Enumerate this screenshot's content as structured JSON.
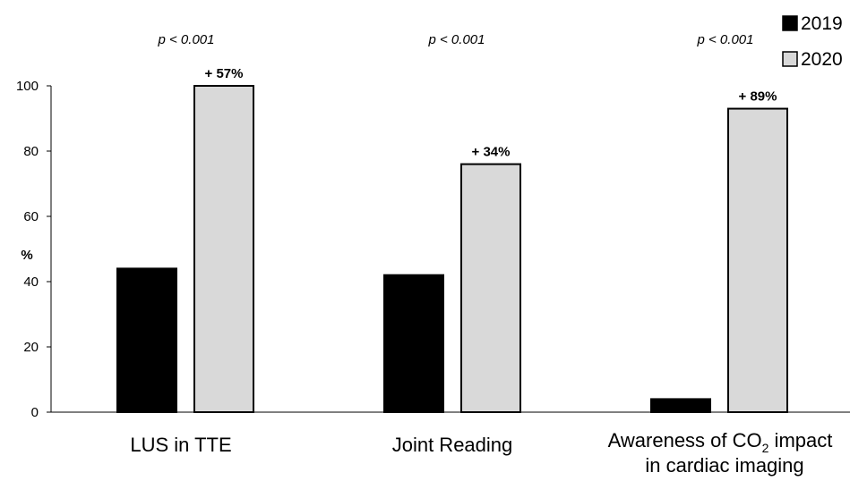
{
  "chart_data": {
    "type": "bar",
    "categories": [
      "LUS in TTE",
      "Joint Reading",
      "Awareness of CO2 impact in cardiac imaging"
    ],
    "category_label_lines": [
      [
        "LUS in TTE"
      ],
      [
        "Joint Reading"
      ],
      [
        "Awareness of CO",
        "2",
        " impact",
        "in cardiac imaging"
      ]
    ],
    "series": [
      {
        "name": "2019",
        "color": "#000000",
        "values": [
          44,
          42,
          4
        ]
      },
      {
        "name": "2020",
        "color": "#d9d9d9",
        "values": [
          100,
          76,
          93
        ]
      }
    ],
    "ylabel": "%",
    "ylim": [
      0,
      100
    ],
    "yticks": [
      0,
      20,
      40,
      60,
      80,
      100
    ],
    "p_values": [
      "p < 0.001",
      "p < 0.001",
      "p < 0.001"
    ],
    "change_labels": [
      "+ 57%",
      "+ 34%",
      "+ 89%"
    ],
    "legend_position": "top-right",
    "grid": false
  }
}
